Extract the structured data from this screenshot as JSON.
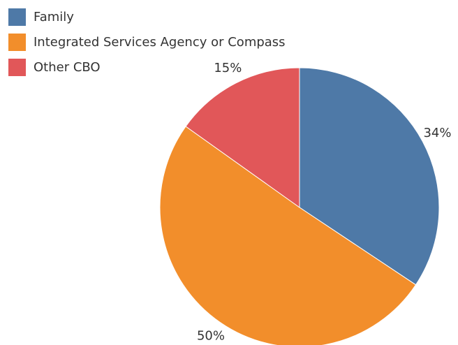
{
  "chart_data": {
    "type": "pie",
    "categories": [
      "Family",
      "Integrated Services Agency or Compass",
      "Other CBO"
    ],
    "values": [
      34,
      50,
      15
    ],
    "value_labels": [
      "34%",
      "50%",
      "15%"
    ],
    "colors": [
      "#4e79a7",
      "#f28e2b",
      "#e15759"
    ],
    "legend": "top-left"
  }
}
